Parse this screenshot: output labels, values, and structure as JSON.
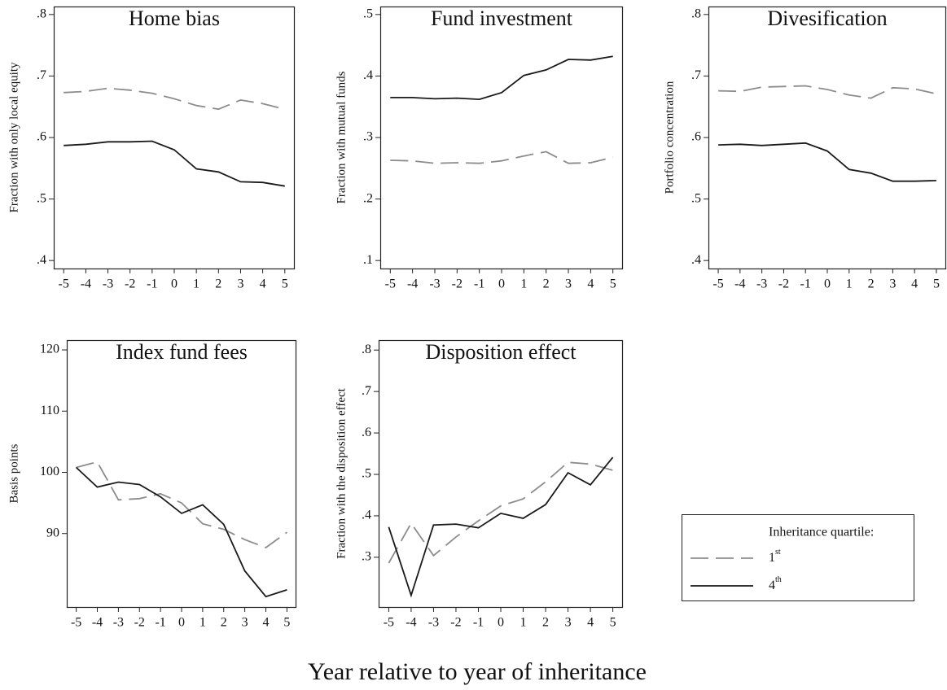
{
  "xlabel": "Year relative to year of inheritance",
  "legend_title": "Inheritance quartile:",
  "chart_data": [
    {
      "type": "line",
      "title": "Home bias",
      "ylabel": "Fraction with only local equity",
      "x": [
        -5,
        -4,
        -3,
        -2,
        -1,
        0,
        1,
        2,
        3,
        4,
        5
      ],
      "xlim": [
        -5.45,
        5.45
      ],
      "xticks": [
        -5,
        -4,
        -3,
        -2,
        -1,
        0,
        1,
        2,
        3,
        4,
        5
      ],
      "ylim": [
        0.387,
        0.813
      ],
      "yticks": [
        {
          "value": 0.4,
          "label": ".4"
        },
        {
          "value": 0.5,
          "label": ".5"
        },
        {
          "value": 0.6,
          "label": ".6"
        },
        {
          "value": 0.7,
          "label": ".7"
        },
        {
          "value": 0.8,
          "label": ".8"
        }
      ],
      "series": [
        {
          "name": "1st",
          "color": "#8c8c8c",
          "linestyle": "dashed",
          "values": [
            0.673,
            0.675,
            0.68,
            0.677,
            0.672,
            0.663,
            0.652,
            0.646,
            0.661,
            0.655,
            0.646
          ]
        },
        {
          "name": "4th",
          "color": "#1a1a1a",
          "linestyle": "solid",
          "values": [
            0.587,
            0.589,
            0.593,
            0.593,
            0.594,
            0.58,
            0.549,
            0.544,
            0.528,
            0.527,
            0.521
          ]
        }
      ]
    },
    {
      "type": "line",
      "title": "Fund investment",
      "ylabel": "Fraction with mutual funds",
      "x": [
        -5,
        -4,
        -3,
        -2,
        -1,
        0,
        1,
        2,
        3,
        4,
        5
      ],
      "xlim": [
        -5.45,
        5.45
      ],
      "xticks": [
        -5,
        -4,
        -3,
        -2,
        -1,
        0,
        1,
        2,
        3,
        4,
        5
      ],
      "ylim": [
        0.087,
        0.513
      ],
      "yticks": [
        {
          "value": 0.1,
          "label": ".1"
        },
        {
          "value": 0.2,
          "label": ".2"
        },
        {
          "value": 0.3,
          "label": ".3"
        },
        {
          "value": 0.4,
          "label": ".4"
        },
        {
          "value": 0.5,
          "label": ".5"
        }
      ],
      "series": [
        {
          "name": "1st",
          "color": "#8c8c8c",
          "linestyle": "dashed",
          "values": [
            0.263,
            0.262,
            0.258,
            0.259,
            0.258,
            0.262,
            0.27,
            0.277,
            0.258,
            0.259,
            0.268
          ]
        },
        {
          "name": "4th",
          "color": "#1a1a1a",
          "linestyle": "solid",
          "values": [
            0.365,
            0.365,
            0.363,
            0.364,
            0.362,
            0.373,
            0.401,
            0.41,
            0.427,
            0.426,
            0.432
          ]
        }
      ]
    },
    {
      "type": "line",
      "title": "Divesification",
      "ylabel": "Portfolio concentration",
      "x": [
        -5,
        -4,
        -3,
        -2,
        -1,
        0,
        1,
        2,
        3,
        4,
        5
      ],
      "xlim": [
        -5.45,
        5.45
      ],
      "xticks": [
        -5,
        -4,
        -3,
        -2,
        -1,
        0,
        1,
        2,
        3,
        4,
        5
      ],
      "ylim": [
        0.387,
        0.813
      ],
      "yticks": [
        {
          "value": 0.4,
          "label": ".4"
        },
        {
          "value": 0.5,
          "label": ".5"
        },
        {
          "value": 0.6,
          "label": ".6"
        },
        {
          "value": 0.7,
          "label": ".7"
        },
        {
          "value": 0.8,
          "label": ".8"
        }
      ],
      "series": [
        {
          "name": "1st",
          "color": "#8c8c8c",
          "linestyle": "dashed",
          "values": [
            0.676,
            0.675,
            0.682,
            0.683,
            0.684,
            0.678,
            0.669,
            0.664,
            0.681,
            0.679,
            0.671
          ]
        },
        {
          "name": "4th",
          "color": "#1a1a1a",
          "linestyle": "solid",
          "values": [
            0.588,
            0.589,
            0.587,
            0.589,
            0.591,
            0.578,
            0.548,
            0.542,
            0.529,
            0.529,
            0.53
          ]
        }
      ]
    },
    {
      "type": "line",
      "title": "Index fund fees",
      "ylabel": "Basis points",
      "x": [
        -5,
        -4,
        -3,
        -2,
        -1,
        0,
        1,
        2,
        3,
        4,
        5
      ],
      "xlim": [
        -5.45,
        5.45
      ],
      "xticks": [
        -5,
        -4,
        -3,
        -2,
        -1,
        0,
        1,
        2,
        3,
        4,
        5
      ],
      "ylim": [
        78,
        121.6
      ],
      "yticks": [
        90,
        100,
        110,
        120
      ],
      "series": [
        {
          "name": "1st",
          "color": "#8c8c8c",
          "linestyle": "dashed",
          "values": [
            100.8,
            101.7,
            95.5,
            95.7,
            96.5,
            95.0,
            91.6,
            90.7,
            89.0,
            87.7,
            90.2
          ]
        },
        {
          "name": "4th",
          "color": "#1a1a1a",
          "linestyle": "solid",
          "values": [
            100.8,
            97.6,
            98.4,
            98.0,
            96.0,
            93.3,
            94.7,
            91.5,
            83.9,
            79.7,
            80.8
          ]
        }
      ]
    },
    {
      "type": "line",
      "title": "Disposition effect",
      "ylabel": "Fraction with the disposition effect",
      "x": [
        -5,
        -4,
        -3,
        -2,
        -1,
        0,
        1,
        2,
        3,
        4,
        5
      ],
      "xlim": [
        -5.45,
        5.45
      ],
      "xticks": [
        -5,
        -4,
        -3,
        -2,
        -1,
        0,
        1,
        2,
        3,
        4,
        5
      ],
      "ylim": [
        0.18,
        0.824
      ],
      "yticks": [
        {
          "value": 0.3,
          "label": ".3"
        },
        {
          "value": 0.4,
          "label": ".4"
        },
        {
          "value": 0.5,
          "label": ".5"
        },
        {
          "value": 0.6,
          "label": ".6"
        },
        {
          "value": 0.7,
          "label": ".7"
        },
        {
          "value": 0.8,
          "label": ".8"
        }
      ],
      "series": [
        {
          "name": "1st",
          "color": "#8c8c8c",
          "linestyle": "dashed",
          "values": [
            0.286,
            0.382,
            0.304,
            0.349,
            0.388,
            0.424,
            0.441,
            0.482,
            0.529,
            0.525,
            0.51
          ]
        },
        {
          "name": "4th",
          "color": "#1a1a1a",
          "linestyle": "solid",
          "values": [
            0.373,
            0.208,
            0.378,
            0.38,
            0.371,
            0.406,
            0.394,
            0.427,
            0.504,
            0.475,
            0.541
          ]
        }
      ]
    }
  ]
}
